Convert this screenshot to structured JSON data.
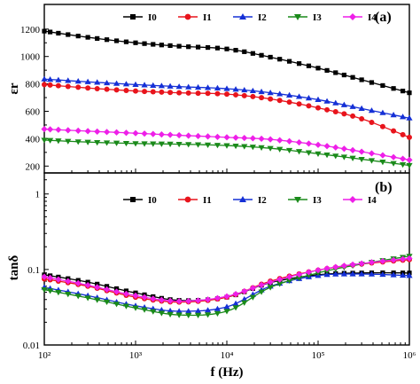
{
  "chart_data": [
    {
      "type": "line",
      "panel": "(a)",
      "xscale": "log",
      "xlim": [
        100,
        1000000
      ],
      "ylim": [
        150,
        1380
      ],
      "ylabel": "εr",
      "yticks": [
        200,
        400,
        600,
        800,
        1000,
        1200
      ],
      "legend": "top",
      "series": [
        {
          "name": "I0",
          "color": "#000000",
          "marker": "square",
          "x": [
            100,
            300,
            1000,
            3000,
            10000,
            30000,
            100000,
            300000,
            1000000
          ],
          "y": [
            1185,
            1140,
            1100,
            1075,
            1055,
            995,
            915,
            830,
            735
          ]
        },
        {
          "name": "I1",
          "color": "#e8141c",
          "marker": "circle",
          "x": [
            100,
            300,
            1000,
            3000,
            10000,
            30000,
            100000,
            300000,
            1000000
          ],
          "y": [
            795,
            770,
            748,
            735,
            725,
            690,
            625,
            545,
            410
          ]
        },
        {
          "name": "I2",
          "color": "#1530d6",
          "marker": "triangle-up",
          "x": [
            100,
            300,
            1000,
            3000,
            10000,
            30000,
            100000,
            300000,
            1000000
          ],
          "y": [
            835,
            815,
            795,
            780,
            765,
            735,
            685,
            620,
            550
          ]
        },
        {
          "name": "I3",
          "color": "#1a8a1a",
          "marker": "triangle-down",
          "x": [
            100,
            300,
            1000,
            3000,
            10000,
            30000,
            100000,
            300000,
            1000000
          ],
          "y": [
            390,
            375,
            365,
            360,
            350,
            330,
            290,
            250,
            205
          ]
        },
        {
          "name": "I4",
          "color": "#ee1fe8",
          "marker": "diamond",
          "x": [
            100,
            300,
            1000,
            3000,
            10000,
            30000,
            100000,
            300000,
            1000000
          ],
          "y": [
            470,
            455,
            440,
            425,
            410,
            395,
            355,
            305,
            245
          ]
        }
      ]
    },
    {
      "type": "line",
      "panel": "(b)",
      "xscale": "log",
      "yscale": "log",
      "xlim": [
        100,
        1000000
      ],
      "ylim": [
        0.01,
        1.9
      ],
      "xlabel": "f (Hz)",
      "ylabel": "tanδ",
      "xticks": [
        "10²",
        "10³",
        "10⁴",
        "10⁵",
        "10⁶"
      ],
      "yticks": [
        "0.01",
        "0.1",
        "1"
      ],
      "legend": "top",
      "series": [
        {
          "name": "I0",
          "color": "#000000",
          "marker": "square",
          "x": [
            100,
            300,
            1000,
            3000,
            10000,
            30000,
            100000,
            300000,
            1000000
          ],
          "y": [
            0.085,
            0.068,
            0.049,
            0.039,
            0.043,
            0.067,
            0.085,
            0.09,
            0.09
          ]
        },
        {
          "name": "I1",
          "color": "#e8141c",
          "marker": "circle",
          "x": [
            100,
            300,
            1000,
            3000,
            10000,
            30000,
            100000,
            300000,
            1000000
          ],
          "y": [
            0.075,
            0.06,
            0.043,
            0.037,
            0.043,
            0.07,
            0.098,
            0.118,
            0.135
          ]
        },
        {
          "name": "I2",
          "color": "#1530d6",
          "marker": "triangle-up",
          "x": [
            100,
            300,
            1000,
            3000,
            10000,
            30000,
            100000,
            300000,
            1000000
          ],
          "y": [
            0.058,
            0.045,
            0.033,
            0.028,
            0.032,
            0.06,
            0.083,
            0.087,
            0.083
          ]
        },
        {
          "name": "I3",
          "color": "#1a8a1a",
          "marker": "triangle-down",
          "x": [
            100,
            300,
            1000,
            3000,
            10000,
            30000,
            100000,
            300000,
            1000000
          ],
          "y": [
            0.054,
            0.042,
            0.031,
            0.025,
            0.028,
            0.058,
            0.09,
            0.118,
            0.15
          ]
        },
        {
          "name": "I4",
          "color": "#ee1fe8",
          "marker": "diamond",
          "x": [
            100,
            300,
            1000,
            3000,
            10000,
            30000,
            100000,
            300000,
            1000000
          ],
          "y": [
            0.08,
            0.062,
            0.045,
            0.038,
            0.044,
            0.068,
            0.098,
            0.12,
            0.14
          ]
        }
      ]
    }
  ]
}
